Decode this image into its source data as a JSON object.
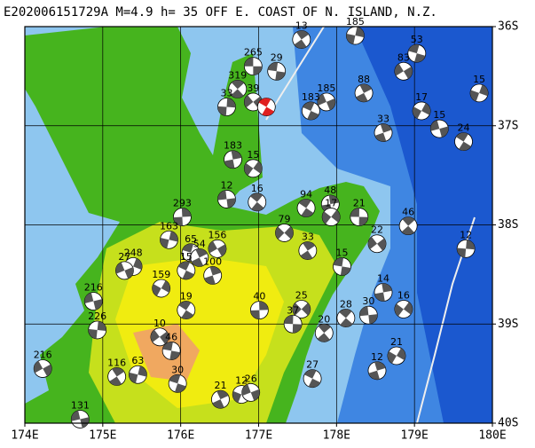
{
  "chart_data": {
    "type": "map",
    "title": "E202006151729A M=4.9 h= 35 OFF E. COAST OF N. ISLAND, N.Z.",
    "xlim": [
      174,
      180
    ],
    "ylim": [
      -40,
      -36
    ],
    "xticks": [
      {
        "value": 174,
        "label": "174E"
      },
      {
        "value": 175,
        "label": "175E"
      },
      {
        "value": 176,
        "label": "176E"
      },
      {
        "value": 177,
        "label": "177E"
      },
      {
        "value": 178,
        "label": "178E"
      },
      {
        "value": 179,
        "label": "179E"
      },
      {
        "value": 180,
        "label": "180E"
      }
    ],
    "yticks": [
      {
        "value": -36,
        "label": "36S"
      },
      {
        "value": -37,
        "label": "37S"
      },
      {
        "value": -38,
        "label": "38S"
      },
      {
        "value": -39,
        "label": "39S"
      },
      {
        "value": -40,
        "label": "40S"
      }
    ],
    "grid": true,
    "main_event": {
      "lon": 177.1,
      "lat": -36.81,
      "color": "#e02020"
    },
    "event_color": "#555555",
    "events": [
      {
        "depth": 265,
        "lon": 176.93,
        "lat": -36.4
      },
      {
        "depth": 319,
        "lon": 176.73,
        "lat": -36.63
      },
      {
        "depth": 33,
        "lon": 176.59,
        "lat": -36.81
      },
      {
        "depth": 39,
        "lon": 176.93,
        "lat": -36.76
      },
      {
        "depth": 29,
        "lon": 177.23,
        "lat": -36.45
      },
      {
        "depth": 13,
        "lon": 177.55,
        "lat": -36.13
      },
      {
        "depth": 185,
        "lon": 178.24,
        "lat": -36.09
      },
      {
        "depth": 83,
        "lon": 178.86,
        "lat": -36.45
      },
      {
        "depth": 53,
        "lon": 179.03,
        "lat": -36.27
      },
      {
        "depth": 88,
        "lon": 178.35,
        "lat": -36.67
      },
      {
        "depth": 15,
        "lon": 179.83,
        "lat": -36.67
      },
      {
        "depth": 185,
        "lon": 177.87,
        "lat": -36.76
      },
      {
        "depth": 183,
        "lon": 177.67,
        "lat": -36.85
      },
      {
        "depth": 33,
        "lon": 178.6,
        "lat": -37.07
      },
      {
        "depth": 17,
        "lon": 179.09,
        "lat": -36.85
      },
      {
        "depth": 15,
        "lon": 179.32,
        "lat": -37.03
      },
      {
        "depth": 24,
        "lon": 179.63,
        "lat": -37.16
      },
      {
        "depth": 183,
        "lon": 176.67,
        "lat": -37.34
      },
      {
        "depth": 15,
        "lon": 176.93,
        "lat": -37.43
      },
      {
        "depth": 12,
        "lon": 176.59,
        "lat": -37.74
      },
      {
        "depth": 16,
        "lon": 176.98,
        "lat": -37.77
      },
      {
        "depth": 293,
        "lon": 176.02,
        "lat": -37.92
      },
      {
        "depth": 79,
        "lon": 177.33,
        "lat": -38.08
      },
      {
        "depth": 21,
        "lon": 178.29,
        "lat": -37.92
      },
      {
        "depth": 46,
        "lon": 178.92,
        "lat": -38.01
      },
      {
        "depth": 12,
        "lon": 179.66,
        "lat": -38.24
      },
      {
        "depth": 22,
        "lon": 178.52,
        "lat": -38.19
      },
      {
        "depth": 15,
        "lon": 178.07,
        "lat": -38.42
      },
      {
        "depth": 33,
        "lon": 177.63,
        "lat": -38.26
      },
      {
        "depth": 163,
        "lon": 175.85,
        "lat": -38.15
      },
      {
        "depth": 156,
        "lon": 176.47,
        "lat": -38.24
      },
      {
        "depth": 65,
        "lon": 176.13,
        "lat": -38.28
      },
      {
        "depth": 54,
        "lon": 176.24,
        "lat": -38.33
      },
      {
        "depth": 248,
        "lon": 175.39,
        "lat": -38.42
      },
      {
        "depth": 27,
        "lon": 175.28,
        "lat": -38.46
      },
      {
        "depth": 15,
        "lon": 176.07,
        "lat": -38.46
      },
      {
        "depth": 100,
        "lon": 176.41,
        "lat": -38.51
      },
      {
        "depth": 159,
        "lon": 175.75,
        "lat": -38.64
      },
      {
        "depth": 216,
        "lon": 174.88,
        "lat": -38.77
      },
      {
        "depth": 19,
        "lon": 176.07,
        "lat": -38.86
      },
      {
        "depth": 14,
        "lon": 178.6,
        "lat": -38.68
      },
      {
        "depth": 16,
        "lon": 178.86,
        "lat": -38.85
      },
      {
        "depth": 30,
        "lon": 178.41,
        "lat": -38.91
      },
      {
        "depth": 28,
        "lon": 178.12,
        "lat": -38.94
      },
      {
        "depth": 40,
        "lon": 177.01,
        "lat": -38.86
      },
      {
        "depth": 25,
        "lon": 177.55,
        "lat": -38.85
      },
      {
        "depth": 37,
        "lon": 177.44,
        "lat": -39.0
      },
      {
        "depth": 20,
        "lon": 177.84,
        "lat": -39.09
      },
      {
        "depth": 226,
        "lon": 174.93,
        "lat": -39.06
      },
      {
        "depth": 10,
        "lon": 175.73,
        "lat": -39.13
      },
      {
        "depth": 46,
        "lon": 175.88,
        "lat": -39.27
      },
      {
        "depth": 116,
        "lon": 175.18,
        "lat": -39.53
      },
      {
        "depth": 63,
        "lon": 175.45,
        "lat": -39.51
      },
      {
        "depth": 216,
        "lon": 174.23,
        "lat": -39.45
      },
      {
        "depth": 30,
        "lon": 175.96,
        "lat": -39.6
      },
      {
        "depth": 21,
        "lon": 176.51,
        "lat": -39.76
      },
      {
        "depth": 12,
        "lon": 176.78,
        "lat": -39.71
      },
      {
        "depth": 26,
        "lon": 176.9,
        "lat": -39.69
      },
      {
        "depth": 27,
        "lon": 177.69,
        "lat": -39.55
      },
      {
        "depth": 12,
        "lon": 178.52,
        "lat": -39.47
      },
      {
        "depth": 21,
        "lon": 178.77,
        "lat": -39.32
      },
      {
        "depth": 131,
        "lon": 174.71,
        "lat": -39.96
      },
      {
        "depth": 94,
        "lon": 177.61,
        "lat": -37.83
      },
      {
        "depth": 48,
        "lon": 177.92,
        "lat": -37.79
      },
      {
        "depth": 17,
        "lon": 177.93,
        "lat": -37.92
      }
    ]
  }
}
